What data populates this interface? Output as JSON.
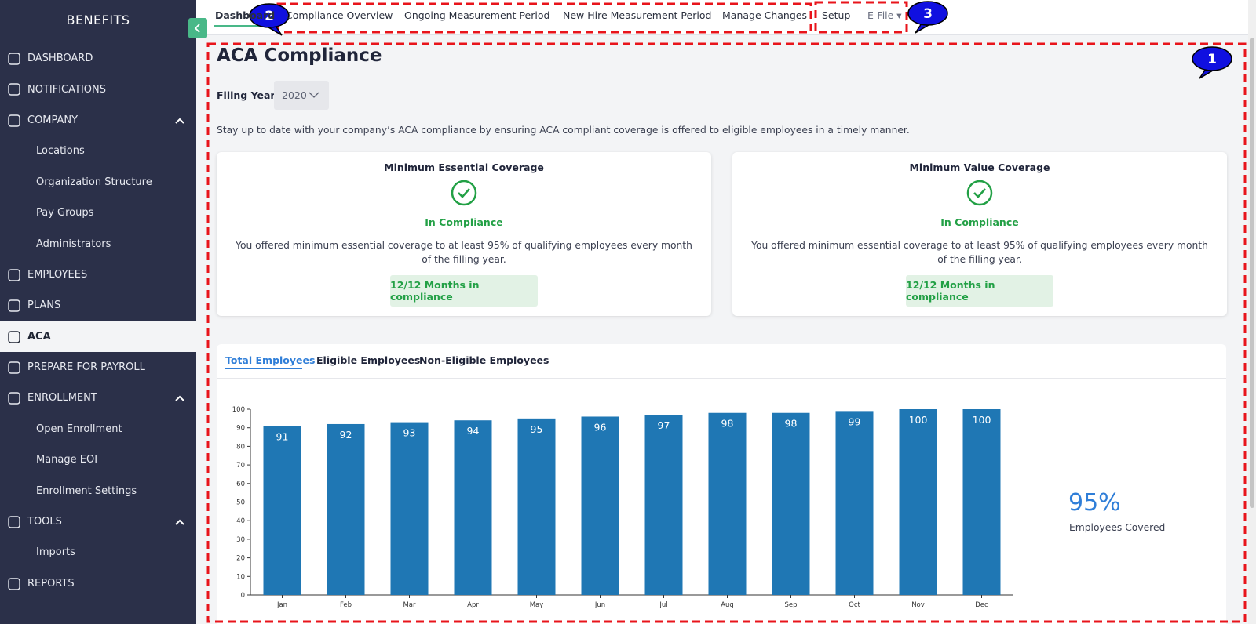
{
  "sidebar": {
    "title": "BENEFITS",
    "items": [
      {
        "label": "DASHBOARD"
      },
      {
        "label": "NOTIFICATIONS"
      },
      {
        "label": "COMPANY",
        "children": [
          "Locations",
          "Organization Structure",
          "Pay Groups",
          "Administrators"
        ]
      },
      {
        "label": "EMPLOYEES"
      },
      {
        "label": "PLANS"
      },
      {
        "label": "ACA",
        "selected": true
      },
      {
        "label": "PREPARE FOR PAYROLL"
      },
      {
        "label": "ENROLLMENT",
        "children": [
          "Open Enrollment",
          "Manage EOI",
          "Enrollment Settings"
        ]
      },
      {
        "label": "TOOLS",
        "children": [
          "Imports"
        ]
      },
      {
        "label": "REPORTS"
      }
    ]
  },
  "tabs": [
    "Dashboard",
    "Compliance Overview",
    "Ongoing Measurement Period",
    "New Hire Measurement Period",
    "Manage Changes",
    "Setup",
    "E-File"
  ],
  "annotations": [
    "1",
    "2",
    "3"
  ],
  "page": {
    "title": "ACA Compliance",
    "filing_year_label": "Filing Year",
    "filing_year": "2020",
    "description": "Stay up to date with your company’s ACA compliance by ensuring ACA compliant coverage is offered to eligible employees in a timely manner.",
    "cards": [
      {
        "title": "Minimum Essential Coverage",
        "status": "In Compliance",
        "text": "You offered minimum essential coverage to at least 95% of qualifying employees every month of the filling year.",
        "badge": "12/12 Months in compliance"
      },
      {
        "title": "Minimum Value Coverage",
        "status": "In Compliance",
        "text": "You offered minimum essential coverage to at least 95% of qualifying employees every month of the filling year.",
        "badge": "12/12 Months in compliance"
      }
    ],
    "chart_tabs": [
      "Total Employees",
      "Eligible Employees",
      "Non-Eligible Employees"
    ],
    "summary": {
      "value": "95%",
      "label": "Employees Covered"
    }
  },
  "chart_data": {
    "type": "bar",
    "categories": [
      "Jan",
      "Feb",
      "Mar",
      "Apr",
      "May",
      "Jun",
      "Jul",
      "Aug",
      "Sep",
      "Oct",
      "Nov",
      "Dec"
    ],
    "values": [
      91,
      92,
      93,
      94,
      95,
      96,
      97,
      98,
      98,
      99,
      100,
      100
    ],
    "color": "#1f77b4",
    "ylim": [
      0,
      100
    ],
    "yticks": [
      0,
      10,
      20,
      30,
      40,
      50,
      60,
      70,
      80,
      90,
      100
    ]
  }
}
